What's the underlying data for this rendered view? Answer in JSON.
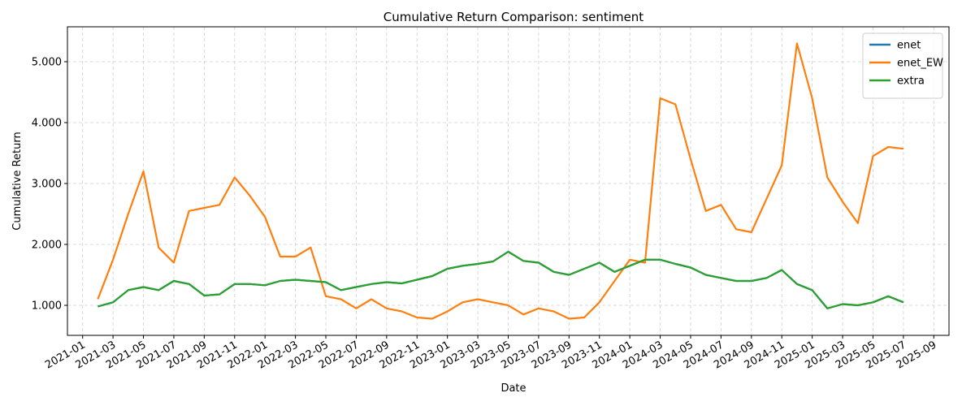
{
  "chart_data": {
    "type": "line",
    "title": "Cumulative Return Comparison: sentiment",
    "x_label": "Date",
    "y_label": "Cumulative Return",
    "x": [
      "2021-02",
      "2021-03",
      "2021-04",
      "2021-05",
      "2021-06",
      "2021-07",
      "2021-08",
      "2021-09",
      "2021-10",
      "2021-11",
      "2021-12",
      "2022-01",
      "2022-02",
      "2022-03",
      "2022-04",
      "2022-05",
      "2022-06",
      "2022-07",
      "2022-08",
      "2022-09",
      "2022-10",
      "2022-11",
      "2022-12",
      "2023-01",
      "2023-02",
      "2023-03",
      "2023-04",
      "2023-05",
      "2023-06",
      "2023-07",
      "2023-08",
      "2023-09",
      "2023-10",
      "2023-11",
      "2023-12",
      "2024-01",
      "2024-02",
      "2024-03",
      "2024-04",
      "2024-05",
      "2024-06",
      "2024-07",
      "2024-08",
      "2024-09",
      "2024-10",
      "2024-11",
      "2024-12",
      "2025-01",
      "2025-02",
      "2025-03",
      "2025-04",
      "2025-05",
      "2025-06",
      "2025-07"
    ],
    "series": [
      {
        "name": "enet",
        "color": "#1f77b4",
        "values": [
          0.98,
          1.05,
          1.25,
          1.3,
          1.25,
          1.4,
          1.35,
          1.16,
          1.18,
          1.35,
          1.35,
          1.33,
          1.4,
          1.42,
          1.4,
          1.38,
          1.25,
          1.3,
          1.35,
          1.38,
          1.36,
          1.42,
          1.48,
          1.6,
          1.65,
          1.68,
          1.72,
          1.88,
          1.73,
          1.7,
          1.55,
          1.5,
          1.6,
          1.7,
          1.55,
          1.65,
          1.75,
          1.75,
          1.68,
          1.62,
          1.5,
          1.45,
          1.4,
          1.4,
          1.45,
          1.58,
          1.35,
          1.25,
          0.95,
          1.02,
          1.0,
          1.05,
          1.15,
          1.05
        ]
      },
      {
        "name": "enet_EW",
        "color": "#ff7f0e",
        "values": [
          1.1,
          1.75,
          2.5,
          3.2,
          1.95,
          1.7,
          2.55,
          2.6,
          2.65,
          3.1,
          2.8,
          2.45,
          1.8,
          1.8,
          1.95,
          1.15,
          1.1,
          0.95,
          1.1,
          0.95,
          0.9,
          0.8,
          0.78,
          0.9,
          1.05,
          1.1,
          1.05,
          1.0,
          0.85,
          0.95,
          0.9,
          0.78,
          0.8,
          1.05,
          1.4,
          1.75,
          1.7,
          4.4,
          4.3,
          3.4,
          2.55,
          2.65,
          2.25,
          2.2,
          2.75,
          3.3,
          5.3,
          4.4,
          3.1,
          2.7,
          2.35,
          3.45,
          3.6,
          3.57
        ]
      },
      {
        "name": "extra",
        "color": "#2ca02c",
        "values": [
          0.98,
          1.05,
          1.25,
          1.3,
          1.25,
          1.4,
          1.35,
          1.16,
          1.18,
          1.35,
          1.35,
          1.33,
          1.4,
          1.42,
          1.4,
          1.38,
          1.25,
          1.3,
          1.35,
          1.38,
          1.36,
          1.42,
          1.48,
          1.6,
          1.65,
          1.68,
          1.72,
          1.88,
          1.73,
          1.7,
          1.55,
          1.5,
          1.6,
          1.7,
          1.55,
          1.65,
          1.75,
          1.75,
          1.68,
          1.62,
          1.5,
          1.45,
          1.4,
          1.4,
          1.45,
          1.58,
          1.35,
          1.25,
          0.95,
          1.02,
          1.0,
          1.05,
          1.15,
          1.05
        ]
      }
    ],
    "xlim": [
      "2020-12",
      "2025-10"
    ],
    "xticks": [
      "2021-01",
      "2021-03",
      "2021-05",
      "2021-07",
      "2021-09",
      "2021-11",
      "2022-01",
      "2022-03",
      "2022-05",
      "2022-07",
      "2022-09",
      "2022-11",
      "2023-01",
      "2023-03",
      "2023-05",
      "2023-07",
      "2023-09",
      "2023-11",
      "2024-01",
      "2024-03",
      "2024-05",
      "2024-07",
      "2024-09",
      "2024-11",
      "2025-01",
      "2025-03",
      "2025-05",
      "2025-07",
      "2025-09"
    ],
    "ylim": [
      0.507,
      5.573
    ],
    "yticks": [
      {
        "value": 1,
        "label": "1.000"
      },
      {
        "value": 2,
        "label": "2.000"
      },
      {
        "value": 3,
        "label": "3.000"
      },
      {
        "value": 4,
        "label": "4.000"
      },
      {
        "value": 5,
        "label": "5.000"
      }
    ],
    "grid": true,
    "legend": "upper right"
  }
}
